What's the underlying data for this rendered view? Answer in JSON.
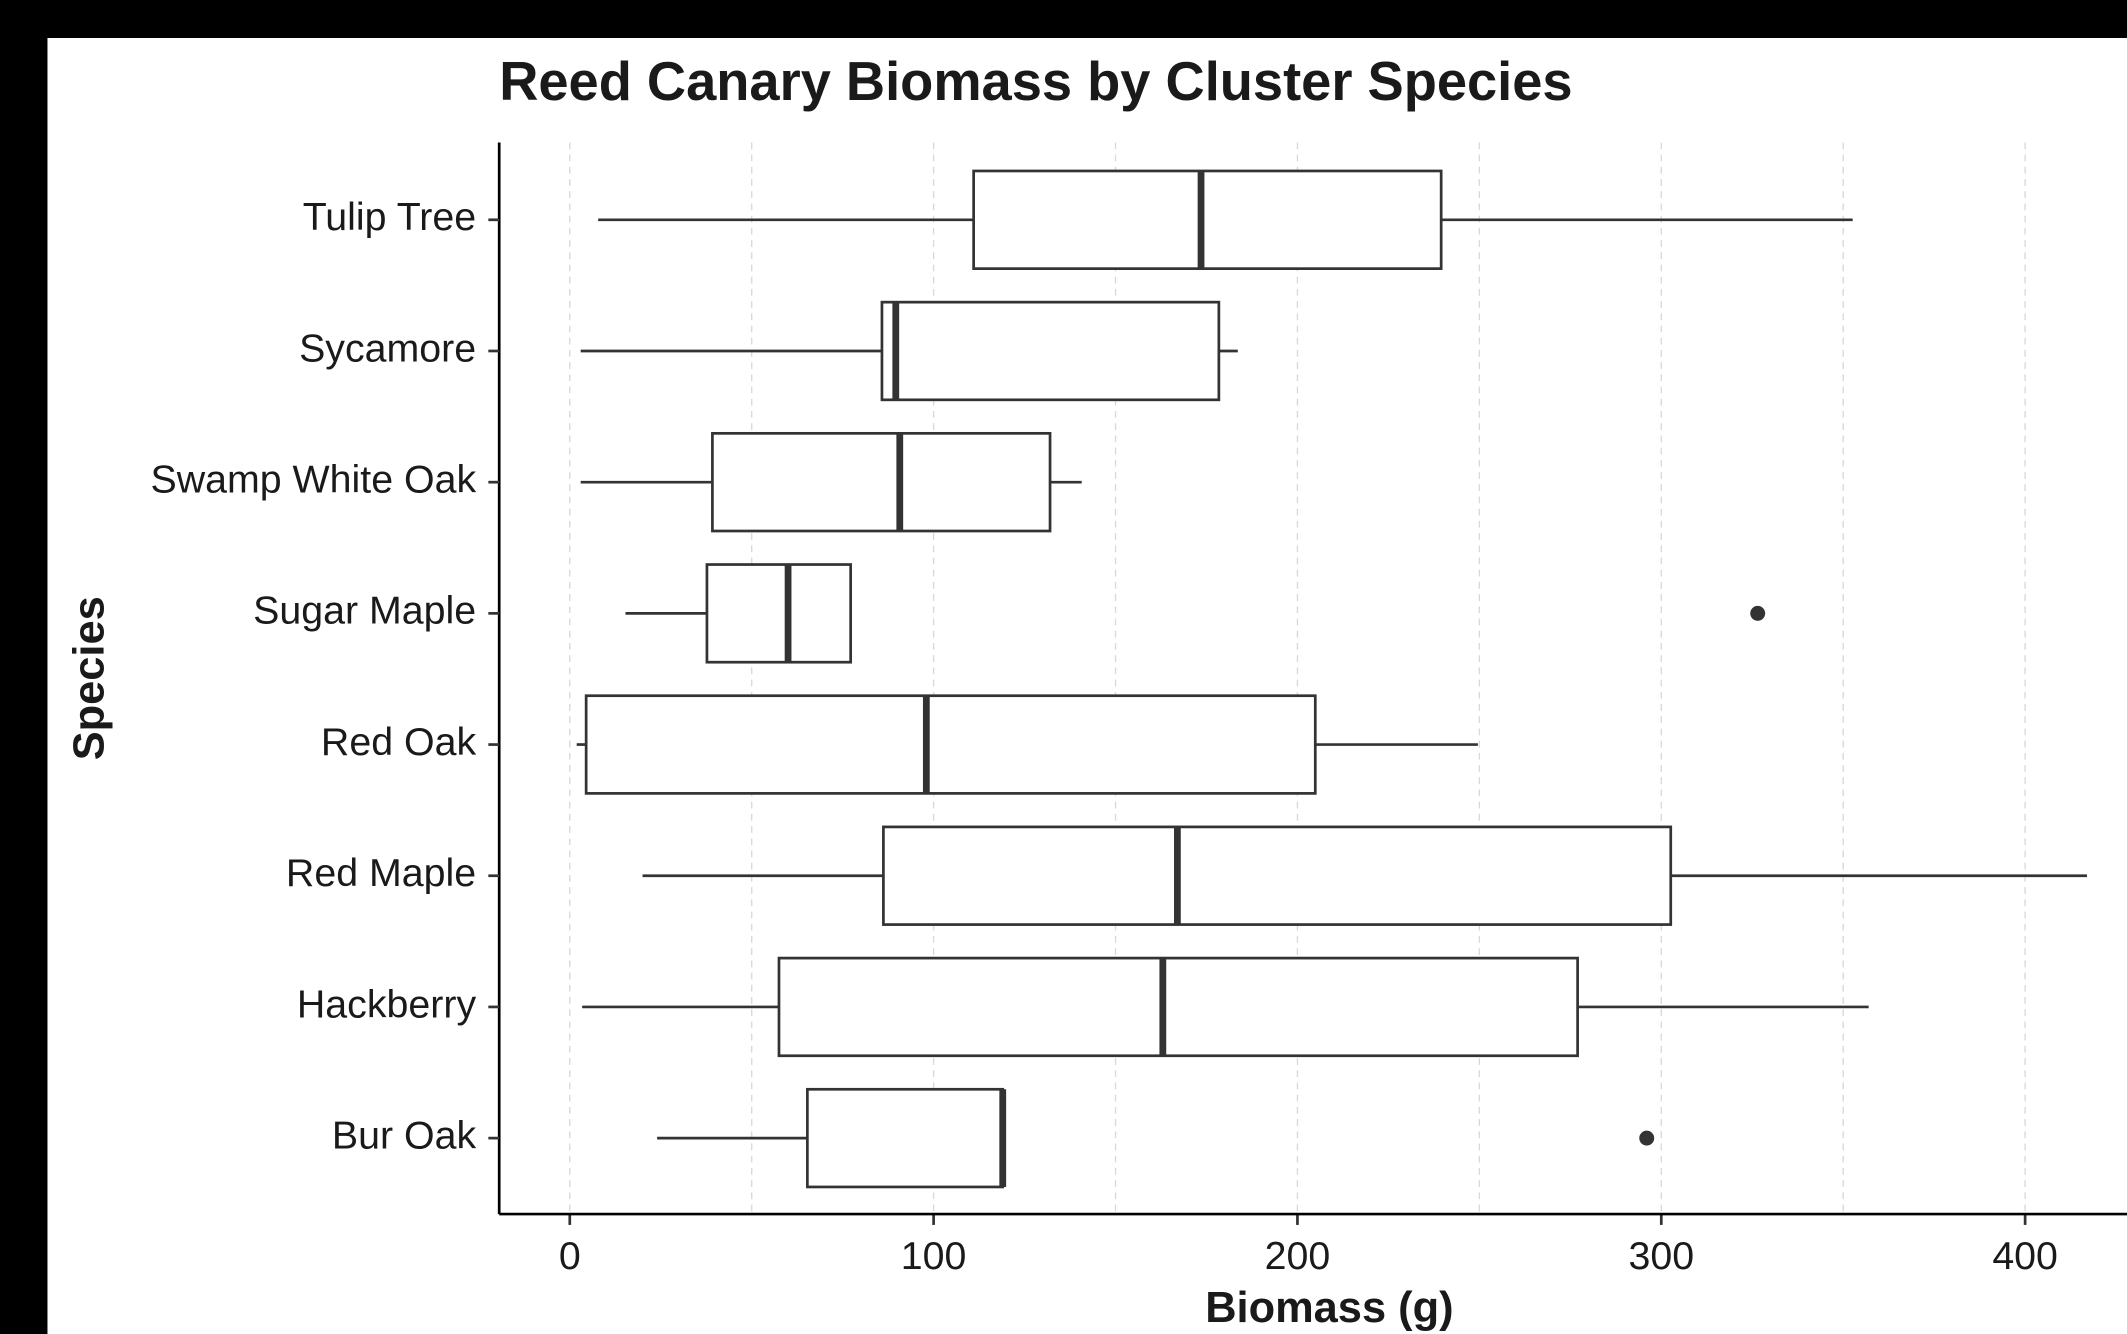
{
  "chart_data": {
    "type": "boxplot",
    "title": "Reed Canary Biomass by Cluster Species",
    "x_label": "Biomass (g)",
    "y_label": "Species",
    "categories": [
      "Bur Oak",
      "Hackberry",
      "Red Maple",
      "Red Oak",
      "Sugar Maple",
      "Swamp White Oak",
      "Sycamore",
      "Tulip Tree"
    ],
    "min": [
      24,
      3.4,
      20,
      1.9,
      15.3,
      3,
      3,
      7.8
    ],
    "q1": [
      65.3,
      57.5,
      86.2,
      4.5,
      37.7,
      39.2,
      85.8,
      111
    ],
    "median": [
      119,
      163,
      167,
      98,
      60,
      90.7,
      89.6,
      173.5
    ],
    "q3": [
      119,
      277,
      302.6,
      204.9,
      77.2,
      132,
      178.4,
      239.5
    ],
    "max": [
      119,
      357,
      417,
      249.6,
      77.2,
      140.7,
      183.6,
      352.6
    ],
    "outliers": [
      [
        296
      ],
      [],
      [],
      [],
      [
        326.5
      ],
      [],
      [],
      []
    ],
    "color": "#333333",
    "xlim": [
      -19.4,
      428
    ],
    "xticks": [
      0,
      100,
      200,
      300,
      400
    ],
    "xgrid": [
      0,
      50,
      100,
      150,
      200,
      250,
      300,
      350,
      400
    ],
    "grid": true
  }
}
